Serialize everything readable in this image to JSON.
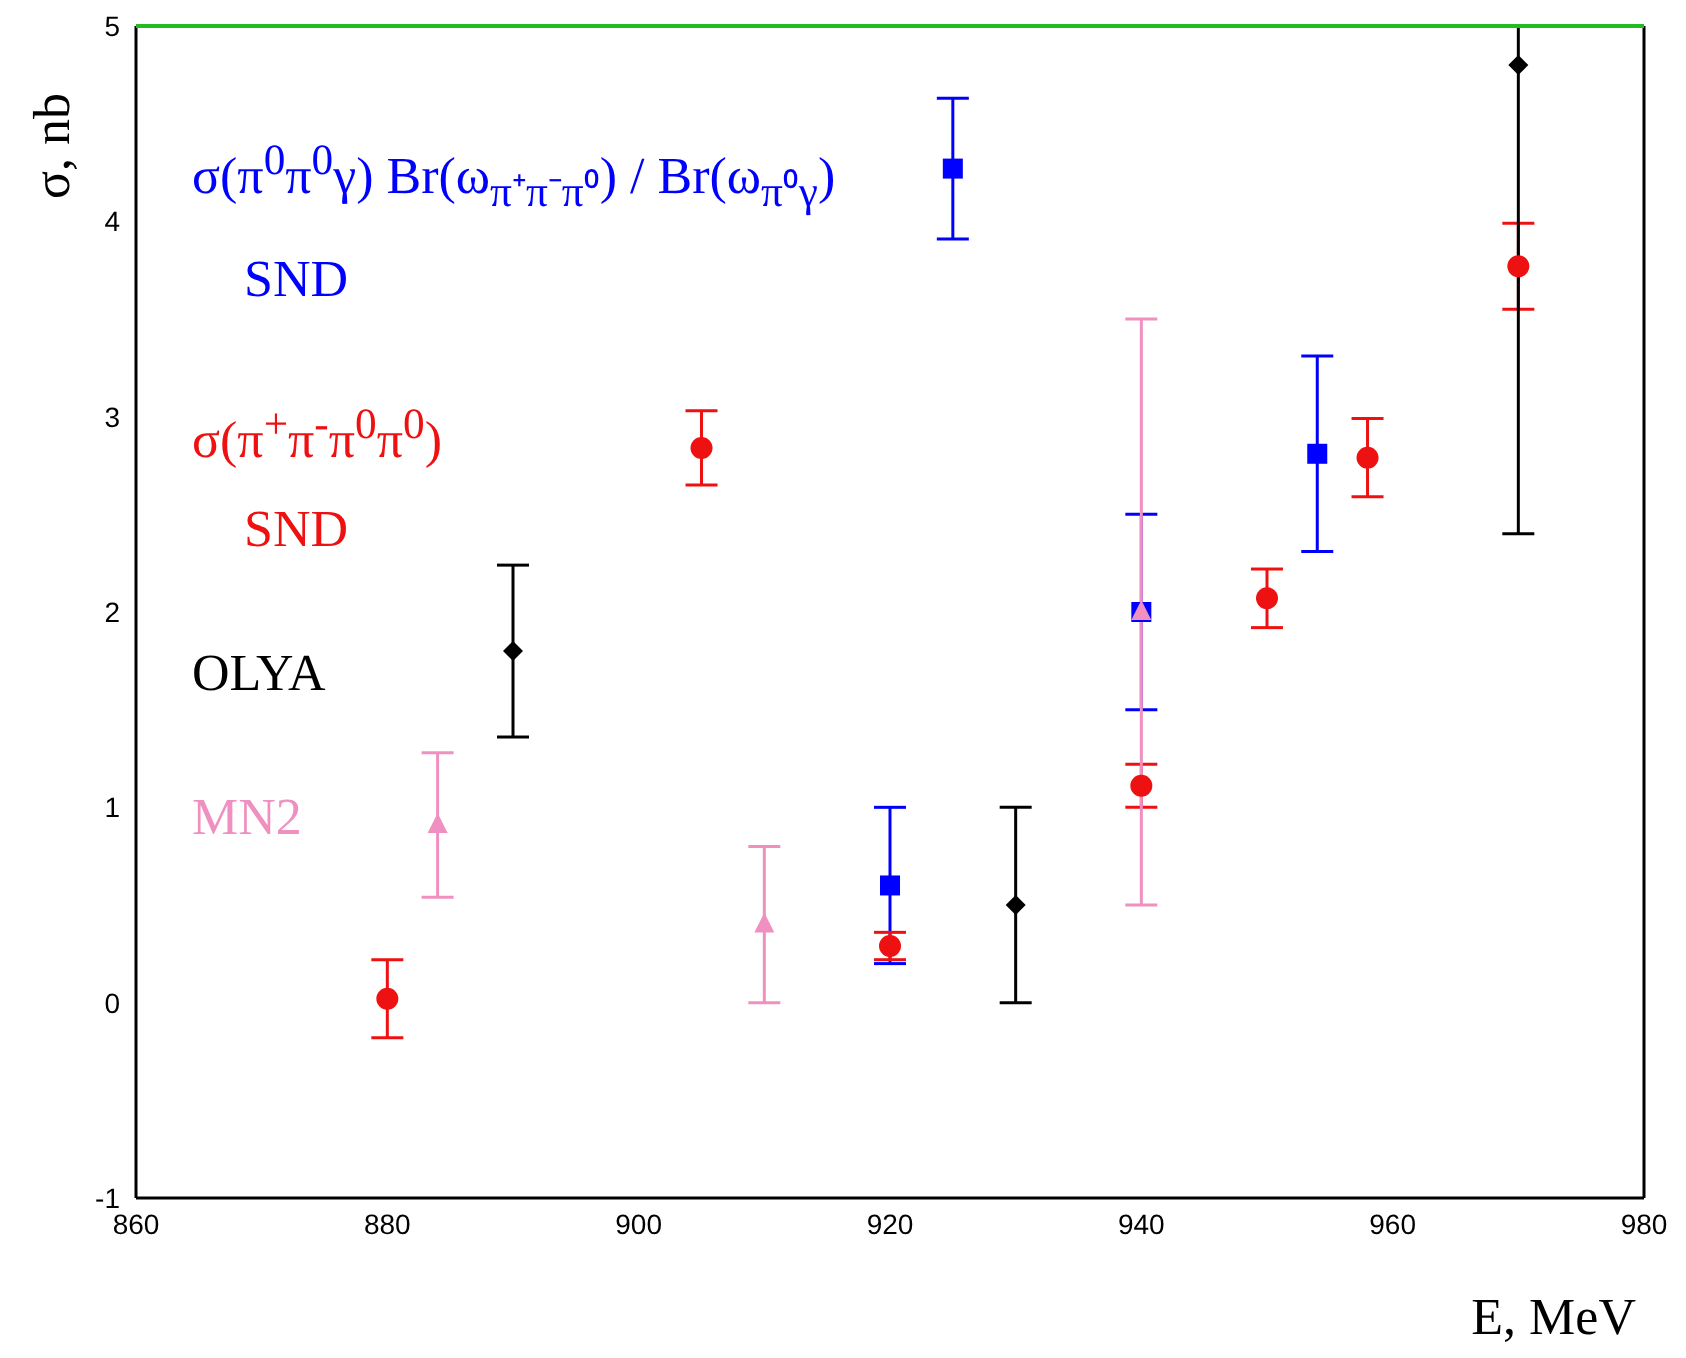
{
  "chart_data": {
    "type": "scatter",
    "xlabel": "E, MeV",
    "ylabel": "σ, nb",
    "xlim": [
      860,
      980
    ],
    "xticks": [
      860,
      880,
      900,
      920,
      940,
      960,
      980
    ],
    "ylim": [
      -1,
      5
    ],
    "yticks": [
      -1,
      0,
      1,
      2,
      3,
      4,
      5
    ],
    "series": [
      {
        "name": "σ(π$^{0}$π$^{0}$γ) Br(ω$_{π⁺π⁻π⁰}$) / Br(ω$_{π⁰γ}$)\nSND",
        "color": "#0000ff",
        "marker": "square",
        "x": [
          920,
          925,
          940,
          954
        ],
        "values": [
          0.6,
          4.27,
          2.0,
          2.81
        ],
        "errors": [
          0.4,
          0.36,
          0.5,
          0.5
        ]
      },
      {
        "name": "σ(π$^{+}$π$^{-}$π$^{0}$π$^{0}$)\nSND",
        "color": "#ee1111",
        "marker": "circle",
        "x": [
          880,
          905,
          920,
          940,
          950,
          958,
          970
        ],
        "values": [
          0.02,
          2.84,
          0.29,
          1.11,
          2.07,
          2.79,
          3.77
        ],
        "errors": [
          0.2,
          0.19,
          0.07,
          0.11,
          0.15,
          0.2,
          0.22
        ]
      },
      {
        "name": "OLYA",
        "color": "#000000",
        "marker": "diamond",
        "x": [
          890,
          930,
          970
        ],
        "values": [
          1.8,
          0.5,
          4.8
        ],
        "errors": [
          0.44,
          0.5,
          [
            2.4,
            5.0
          ]
        ]
      },
      {
        "name": "MN2",
        "color": "#f090c0",
        "marker": "triangle",
        "x": [
          884,
          910,
          940
        ],
        "values": [
          0.91,
          0.4,
          2.0
        ],
        "errors": [
          0.37,
          0.4,
          1.5
        ]
      }
    ]
  }
}
